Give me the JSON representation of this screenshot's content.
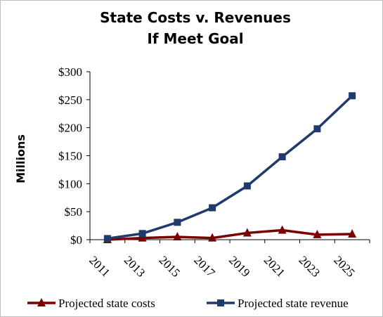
{
  "chart_data": {
    "type": "line",
    "title_lines": [
      "State Costs v. Revenues",
      "If Meet Goal"
    ],
    "ylabel": "Millions",
    "xlabel": "",
    "x": [
      "2011",
      "2013",
      "2015",
      "2017",
      "2019",
      "2021",
      "2023",
      "2025"
    ],
    "y_ticks": [
      "$0",
      "$50",
      "$100",
      "$150",
      "$200",
      "$250",
      "$300"
    ],
    "ylim": [
      0,
      300
    ],
    "grid": false,
    "legend_position": "bottom",
    "series": [
      {
        "name": "Projected state costs",
        "values": [
          0,
          3,
          5,
          3,
          12,
          17,
          9,
          10
        ],
        "color": "#7a0000",
        "marker": "triangle"
      },
      {
        "name": "Projected state revenue",
        "values": [
          2,
          11,
          31,
          57,
          96,
          148,
          198,
          257
        ],
        "color": "#1f3a6b",
        "marker": "square"
      }
    ]
  }
}
